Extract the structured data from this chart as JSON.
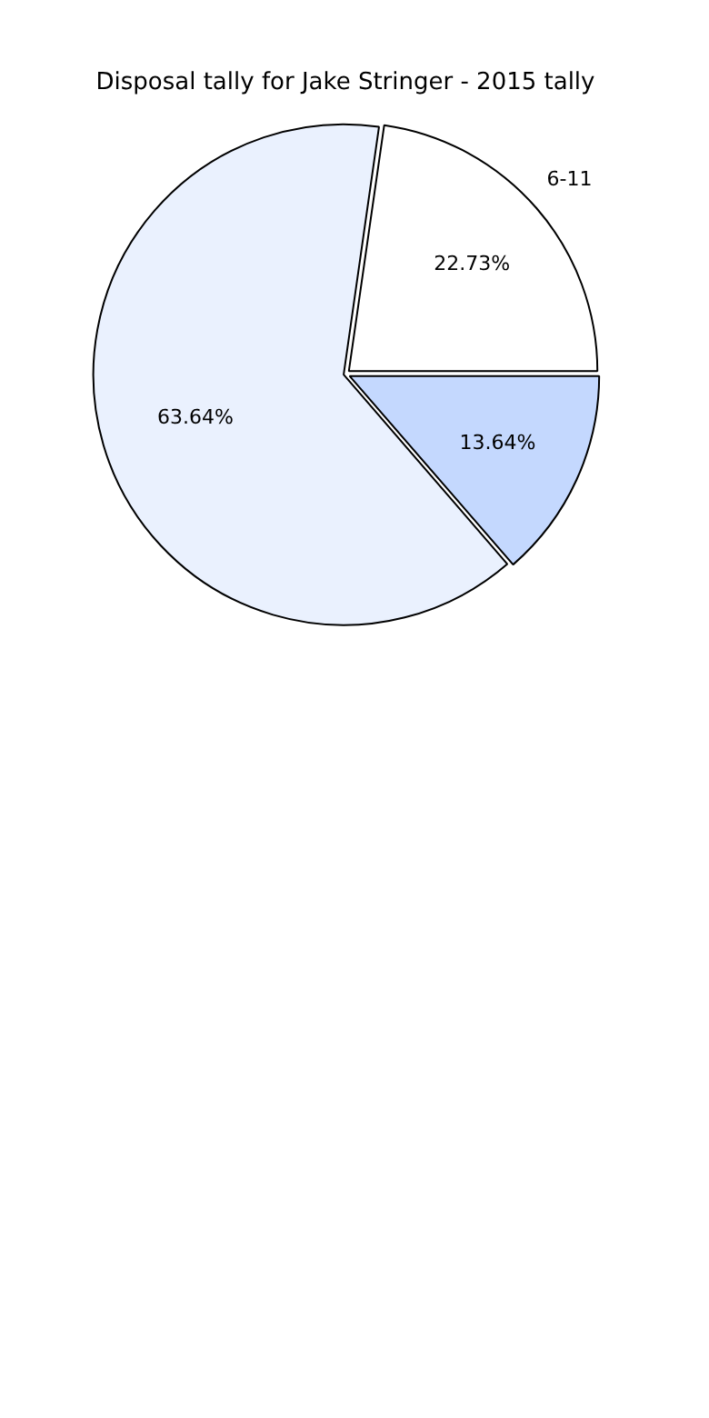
{
  "chart_data": {
    "type": "pie",
    "title": "Disposal tally for Jake Stringer - 2015 tally",
    "categories": [
      "6-11",
      null,
      null
    ],
    "values": [
      22.73,
      63.64,
      13.64
    ],
    "colors": [
      "#ffffff",
      "#eaf1fe",
      "#c4d8fe"
    ],
    "value_labels": [
      "22.73%",
      "63.64%",
      "13.64%"
    ],
    "legend": false
  }
}
